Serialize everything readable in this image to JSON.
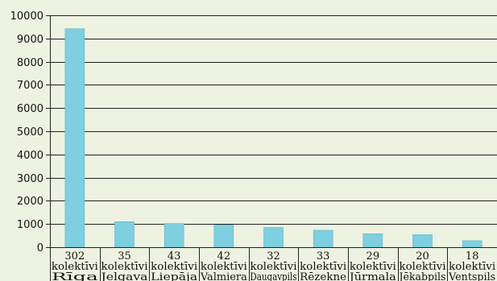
{
  "chart_data": {
    "type": "bar",
    "title": "",
    "xlabel": "",
    "ylabel": "",
    "ylim": [
      0,
      10000
    ],
    "yticks": [
      0,
      1000,
      2000,
      3000,
      4000,
      5000,
      6000,
      7000,
      8000,
      9000,
      10000
    ],
    "grid": true,
    "colors": {
      "bar": "#7ecfe0",
      "bar_edge": "#5fb8cc",
      "background": "#eef2e1",
      "grid": "#222222"
    },
    "categories": [
      "Rīga",
      "Jelgava",
      "Liepāja",
      "Valmiera",
      "Daugavpils",
      "Rēzekne",
      "Jūrmala",
      "Jēkabpils",
      "Ventspils"
    ],
    "category_labels": [
      [
        "302",
        "kolektīvi",
        "Rīga"
      ],
      [
        "35",
        "kolektīvi",
        "Jelgava"
      ],
      [
        "43",
        "kolektīvi",
        "Liepāja"
      ],
      [
        "42",
        "kolektīvi",
        "Valmiera"
      ],
      [
        "32",
        "kolektīvi",
        "Daugavpils"
      ],
      [
        "33",
        "kolektīvi",
        "Rēzekne"
      ],
      [
        "29",
        "kolektīvi",
        "Jūrmala"
      ],
      [
        "20",
        "kolektīvi",
        "Jēkabpils"
      ],
      [
        "18",
        "kolektīvi",
        "Ventspils"
      ]
    ],
    "values": [
      9420,
      1100,
      1020,
      960,
      850,
      730,
      580,
      540,
      280
    ]
  }
}
